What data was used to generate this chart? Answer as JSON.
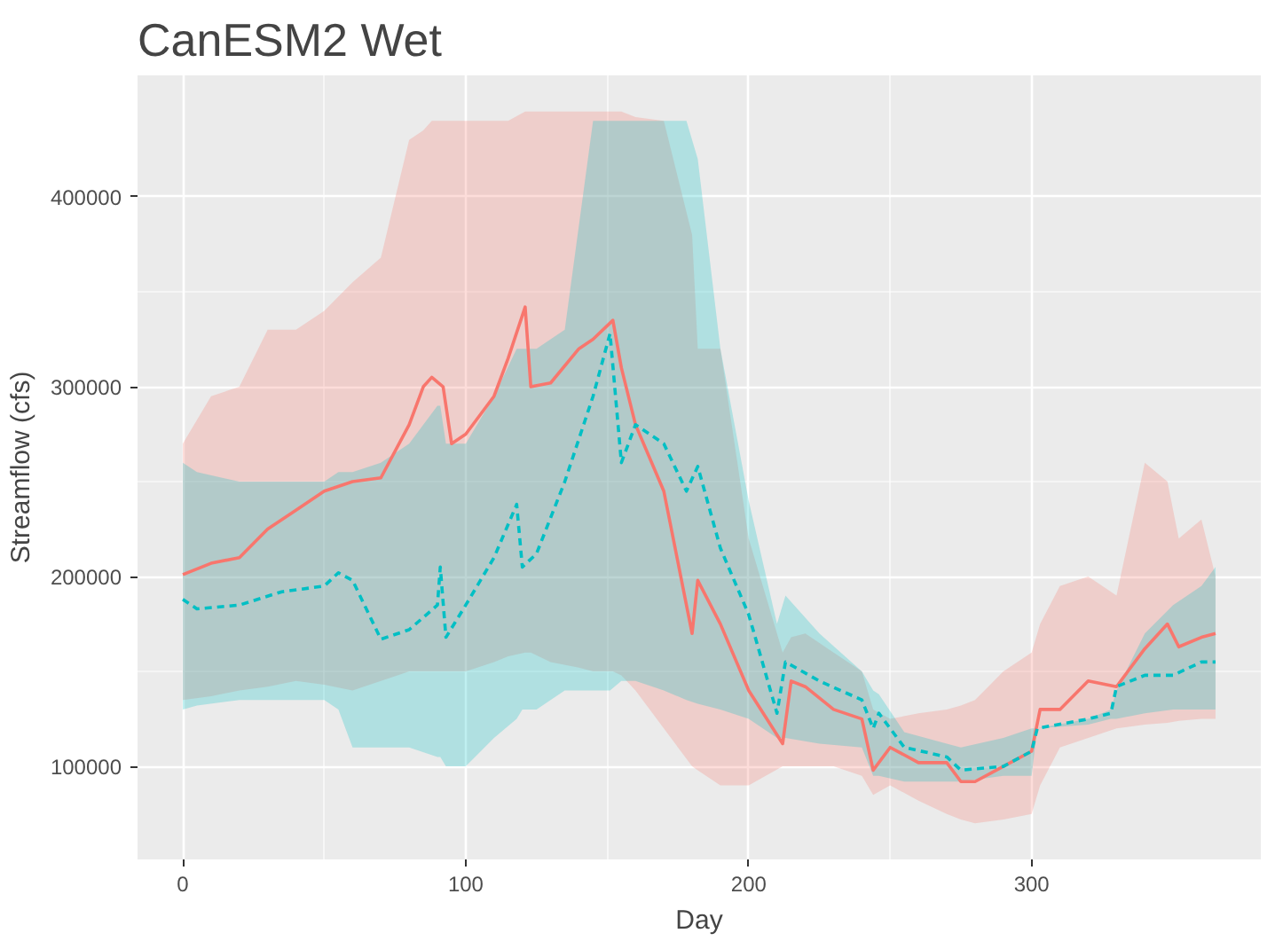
{
  "chart_data": {
    "type": "line",
    "title": "CanESM2  Wet",
    "xlabel": "Day",
    "ylabel": "Streamflow (cfs)",
    "xlim": [
      -16,
      381
    ],
    "ylim": [
      51000,
      464000
    ],
    "xticks": [
      0,
      100,
      200,
      300
    ],
    "yticks": [
      100000,
      200000,
      300000,
      400000
    ],
    "grid": true,
    "series": [
      {
        "color": "#f8766d",
        "line_style": "solid",
        "x": [
          0,
          10,
          20,
          30,
          40,
          50,
          60,
          70,
          80,
          85,
          88,
          92,
          95,
          100,
          110,
          115,
          121,
          123,
          130,
          140,
          145,
          152,
          155,
          160,
          170,
          180,
          182,
          190,
          200,
          212,
          215,
          220,
          230,
          240,
          244,
          250,
          260,
          270,
          275,
          280,
          290,
          300,
          303,
          310,
          320,
          330,
          340,
          348,
          352,
          360,
          365
        ],
        "values": [
          201000,
          207000,
          210000,
          225000,
          235000,
          245000,
          250000,
          252000,
          280000,
          300000,
          305000,
          300000,
          270000,
          275000,
          295000,
          315000,
          342000,
          300000,
          302000,
          320000,
          325000,
          335000,
          310000,
          280000,
          245000,
          170000,
          198000,
          175000,
          140000,
          112000,
          145000,
          142000,
          130000,
          125000,
          98000,
          110000,
          102000,
          102000,
          92000,
          92000,
          100000,
          108000,
          130000,
          130000,
          145000,
          142000,
          162000,
          175000,
          163000,
          168000,
          170000
        ],
        "upper": [
          270000,
          295000,
          300000,
          330000,
          330000,
          340000,
          355000,
          368000,
          430000,
          435000,
          440000,
          440000,
          440000,
          440000,
          440000,
          440000,
          445000,
          445000,
          445000,
          445000,
          445000,
          445000,
          445000,
          442000,
          440000,
          380000,
          320000,
          320000,
          220000,
          160000,
          168000,
          170000,
          160000,
          150000,
          130000,
          125000,
          128000,
          130000,
          132000,
          135000,
          150000,
          160000,
          175000,
          195000,
          200000,
          190000,
          260000,
          250000,
          220000,
          230000,
          200000
        ],
        "lower": [
          135000,
          137000,
          140000,
          142000,
          145000,
          143000,
          140000,
          145000,
          150000,
          150000,
          150000,
          150000,
          150000,
          150000,
          155000,
          158000,
          160000,
          160000,
          155000,
          152000,
          150000,
          150000,
          148000,
          140000,
          120000,
          100000,
          98000,
          90000,
          90000,
          100000,
          100000,
          100000,
          100000,
          95000,
          85000,
          90000,
          82000,
          75000,
          72000,
          70000,
          72000,
          75000,
          90000,
          110000,
          115000,
          120000,
          122000,
          123000,
          124000,
          125000,
          125000
        ]
      },
      {
        "color": "#00bfc4",
        "line_style": "dashed",
        "x": [
          0,
          5,
          20,
          35,
          50,
          55,
          60,
          70,
          80,
          90,
          91,
          93,
          100,
          110,
          118,
          120,
          125,
          135,
          145,
          151,
          155,
          160,
          170,
          178,
          182,
          190,
          200,
          210,
          213,
          225,
          240,
          244,
          246,
          255,
          270,
          275,
          290,
          300,
          302,
          320,
          328,
          330,
          340,
          350,
          360,
          365
        ],
        "values": [
          188000,
          183000,
          185000,
          192000,
          195000,
          202000,
          198000,
          167000,
          172000,
          185000,
          205000,
          168000,
          185000,
          210000,
          238000,
          205000,
          212000,
          250000,
          295000,
          328000,
          260000,
          280000,
          270000,
          245000,
          258000,
          215000,
          180000,
          128000,
          155000,
          145000,
          135000,
          120000,
          128000,
          110000,
          105000,
          98000,
          100000,
          108000,
          120000,
          125000,
          128000,
          142000,
          148000,
          148000,
          155000,
          155000
        ],
        "upper": [
          260000,
          255000,
          250000,
          250000,
          250000,
          255000,
          255000,
          260000,
          270000,
          290000,
          290000,
          270000,
          270000,
          295000,
          320000,
          320000,
          320000,
          330000,
          440000,
          440000,
          440000,
          440000,
          440000,
          440000,
          420000,
          320000,
          240000,
          175000,
          190000,
          170000,
          150000,
          140000,
          138000,
          118000,
          112000,
          110000,
          115000,
          120000,
          120000,
          125000,
          130000,
          140000,
          170000,
          185000,
          195000,
          205000
        ],
        "lower": [
          130000,
          132000,
          135000,
          135000,
          135000,
          130000,
          110000,
          110000,
          110000,
          105000,
          105000,
          100000,
          100000,
          115000,
          125000,
          130000,
          130000,
          140000,
          140000,
          140000,
          145000,
          145000,
          140000,
          135000,
          133000,
          130000,
          125000,
          115000,
          115000,
          112000,
          110000,
          95000,
          95000,
          92000,
          92000,
          92000,
          95000,
          95000,
          120000,
          122000,
          125000,
          125000,
          128000,
          130000,
          130000,
          130000
        ]
      }
    ]
  }
}
